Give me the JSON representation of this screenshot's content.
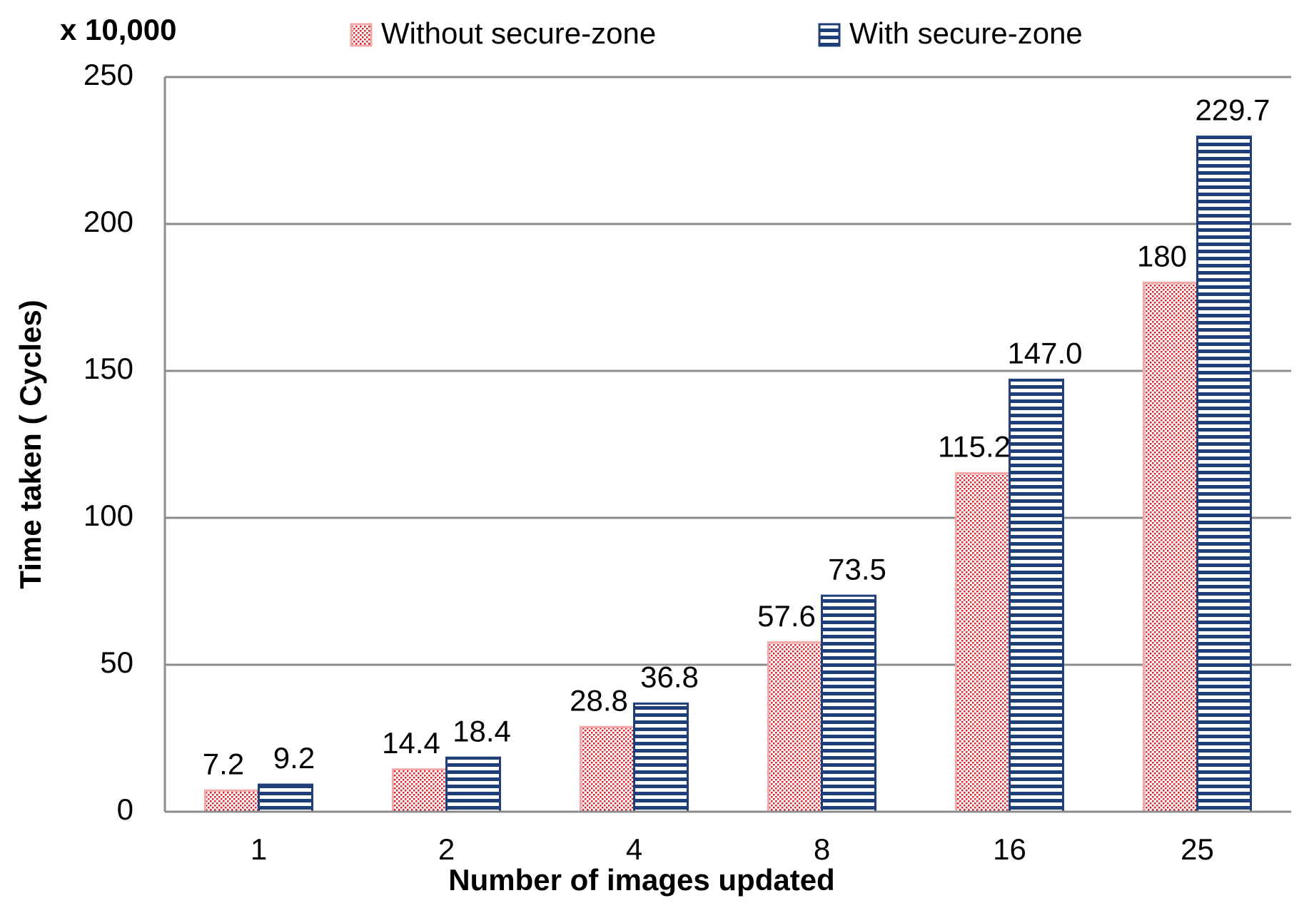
{
  "chart_data": {
    "type": "bar",
    "unit_label": "x 10,000",
    "y_label": "Time taken ( Cycles)",
    "x_label": "Number of images updated",
    "categories": [
      "1",
      "2",
      "4",
      "8",
      "16",
      "25"
    ],
    "series": [
      {
        "name": "Without secure-zone",
        "color": "#d9262c",
        "values": [
          7.2,
          14.4,
          28.8,
          57.6,
          115.2,
          180
        ]
      },
      {
        "name": "With secure-zone",
        "color": "#1f3f7a",
        "values": [
          9.2,
          18.4,
          36.8,
          73.5,
          147,
          229.7
        ],
        "value_labels": [
          "9.2",
          "18.4",
          "36.8",
          "73.5",
          "147.0",
          "229.7"
        ]
      }
    ],
    "ylim": [
      0,
      250
    ],
    "yticks": [
      0,
      50,
      100,
      150,
      200,
      250
    ],
    "grid": true
  }
}
